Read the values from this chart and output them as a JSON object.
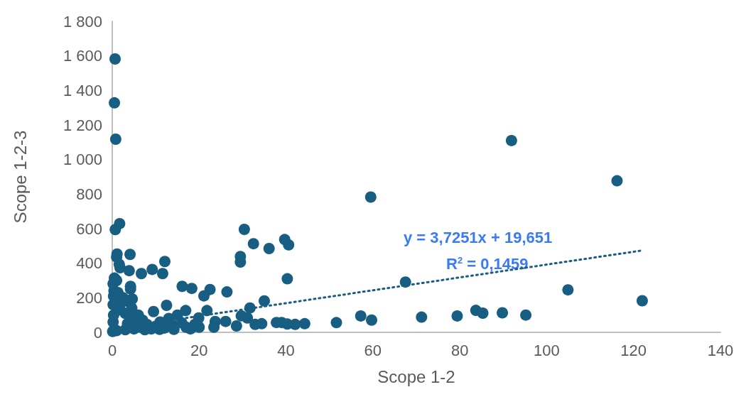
{
  "chart_data": {
    "type": "scatter",
    "xlabel": "Scope 1-2",
    "ylabel": "Scope 1-2-3",
    "marker": "circle",
    "xlim": [
      0,
      140
    ],
    "xticks": [
      0,
      20,
      40,
      60,
      80,
      100,
      120,
      140
    ],
    "ylim": [
      0,
      1800
    ],
    "yticks": [
      0,
      200,
      400,
      600,
      800,
      {
        "value": 1000,
        "label": "1 000"
      },
      {
        "value": 1200,
        "label": "1 200"
      },
      {
        "value": 1400,
        "label": "1 400"
      },
      {
        "value": 1600,
        "label": "1 600"
      },
      {
        "value": 1800,
        "label": "1 800"
      }
    ],
    "annotations": [
      "y = 3,7251x + 19,651",
      "R$^{2}$ = 0,1459"
    ],
    "series": [
      {
        "color": "#175e82",
        "x": [
          0.65,
          0.5,
          0.8,
          1.7,
          0.7,
          1.1,
          1.0,
          4.1,
          1.6,
          1.8,
          3.9,
          6.7,
          9.2,
          12.1,
          11.6,
          30.4,
          32.5,
          36.1,
          39.7,
          40.6,
          29.5,
          29.5,
          40.3,
          0.5,
          0.2,
          4.2,
          4.2,
          16.1,
          18.3,
          22.5,
          21.1,
          26.4,
          35,
          31.7,
          4.6,
          12.5,
          9.5,
          21.8,
          16.9,
          29.7,
          31.1,
          19.9,
          23.7,
          26.1,
          32.9,
          34.4,
          37.8,
          39,
          40.3,
          42.1,
          44.3,
          28.6,
          23.4,
          14.2,
          10.9,
          59.5,
          116.2,
          91.9,
          104.9,
          122,
          67.5,
          51.6,
          57.2,
          59.7,
          71.2,
          79.4,
          83.7,
          85.3,
          89.8,
          95.2,
          0.1,
          0.2,
          0.3,
          0.2,
          0.3,
          0.4,
          1,
          1.8,
          2,
          3,
          3,
          3.5,
          4,
          4.5,
          5,
          5.5,
          6,
          6.5,
          7,
          7.5,
          8,
          9,
          10,
          11,
          12,
          13,
          14,
          15,
          16,
          17,
          18,
          19,
          20,
          1.0,
          2.5,
          4,
          1.3
        ],
        "values": [
          1582,
          1328,
          1118,
          629,
          595,
          453,
          436,
          451,
          394,
          374,
          357,
          340,
          364,
          410,
          340,
          596,
          513,
          485,
          537,
          506,
          439,
          407,
          310,
          314,
          281,
          266,
          251,
          266,
          254,
          248,
          211,
          234,
          182,
          141,
          193,
          156,
          120,
          126,
          126,
          96,
          83,
          83,
          63,
          63,
          46,
          50,
          57,
          57,
          48,
          46,
          50,
          37,
          30,
          17,
          17,
          783,
          877,
          1110,
          246,
          183,
          291,
          56,
          95,
          71,
          88,
          95,
          127,
          111,
          113,
          100,
          5,
          60,
          100,
          160,
          210,
          240,
          10,
          130,
          170,
          110,
          15,
          50,
          90,
          140,
          20,
          60,
          100,
          30,
          70,
          15,
          45,
          20,
          35,
          60,
          25,
          80,
          40,
          100,
          55,
          30,
          20,
          45,
          30,
          300,
          200,
          175,
          230
        ]
      },
      {
        "type": "line",
        "color": "#175e82",
        "line_style": "dotted",
        "marker": "none",
        "x": [
          0,
          122
        ],
        "values": [
          20,
          474
        ]
      }
    ]
  }
}
